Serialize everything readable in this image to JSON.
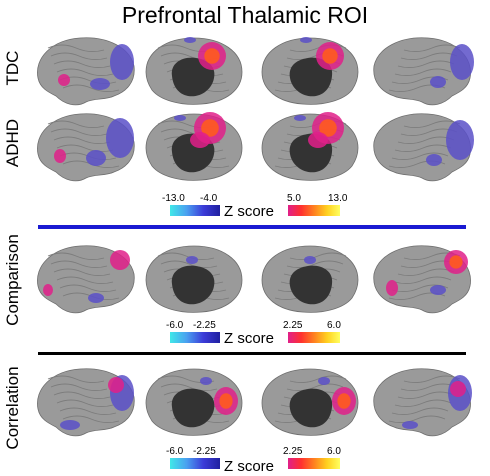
{
  "figure": {
    "title": "Prefrontal Thalamic ROI",
    "rows": [
      {
        "label": "TDC"
      },
      {
        "label": "ADHD"
      },
      {
        "label": "Comparison"
      },
      {
        "label": "Correlation"
      }
    ],
    "colorbars": [
      {
        "neg_min": "-13.0",
        "neg_max": "-4.0",
        "pos_min": "5.0",
        "pos_max": "13.0",
        "label": "Z score"
      },
      {
        "neg_min": "-6.0",
        "neg_max": "-2.25",
        "pos_min": "2.25",
        "pos_max": "6.0",
        "label": "Z score"
      },
      {
        "neg_min": "-6.0",
        "neg_max": "-2.25",
        "pos_min": "2.25",
        "pos_max": "6.0",
        "label": "Z score"
      }
    ],
    "colors": {
      "cortex": "#9a9a9a",
      "medial_wall": "#333333",
      "negative": "#5a50c8",
      "positive_low": "#e0208a",
      "positive_high": "#ff5a1e",
      "divider_blue": "#1a1ad2",
      "divider_black": "#000000"
    }
  }
}
